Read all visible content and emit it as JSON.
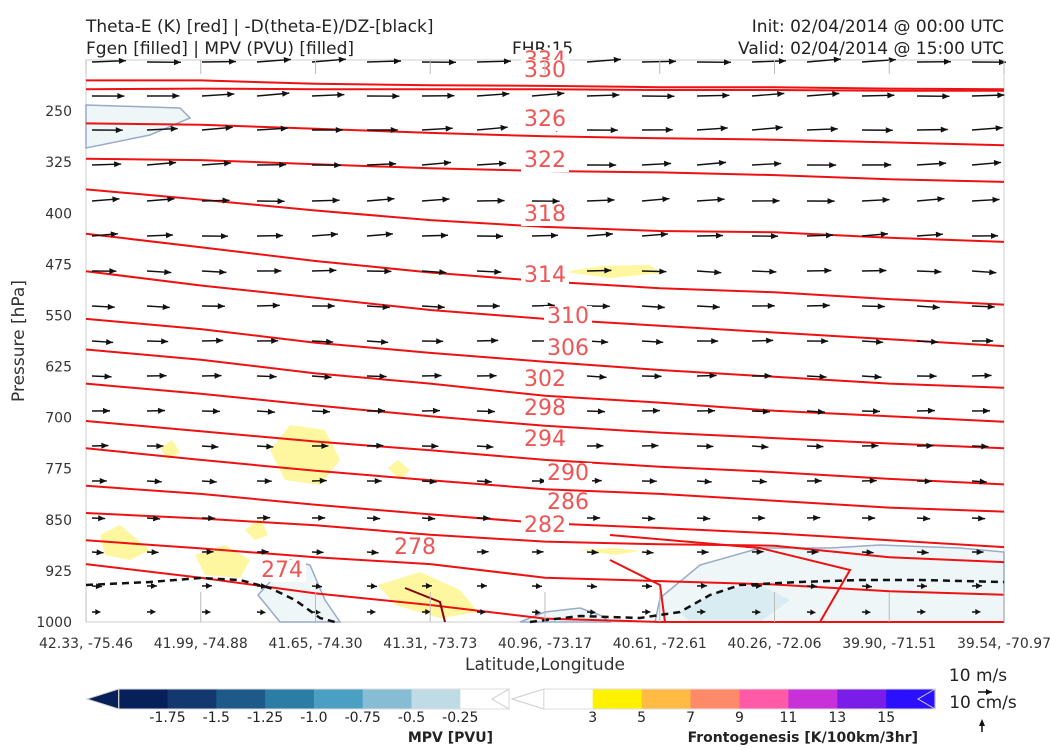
{
  "header": {
    "line1_left": "Theta-E (K) [red] | -D(theta-E)/DZ-[black]",
    "line2_left": "Fgen [filled] | MPV (PVU) [filled]",
    "fhr": "FHR:15",
    "init": "Init: 02/04/2014 @ 00:00 UTC",
    "valid": "Valid: 02/04/2014 @ 15:00 UTC"
  },
  "chart_data": {
    "type": "cross-section",
    "xlabel": "Latitude,Longitude",
    "ylabel": "Pressure [hPa]",
    "ylim": [
      1000,
      175
    ],
    "y_ticks": [
      250,
      325,
      400,
      475,
      550,
      625,
      700,
      775,
      850,
      925,
      1000
    ],
    "x_ticks": [
      "42.33, -75.46",
      "41.99, -74.88",
      "41.65, -74.30",
      "41.31, -73.73",
      "40.96, -73.17",
      "40.61, -72.61",
      "40.26, -72.06",
      "39.90, -71.51",
      "39.54, -70.97"
    ],
    "theta_e_contours": [
      {
        "label": "334",
        "p": [
          205,
          205,
          210,
          212,
          213,
          215,
          215,
          217,
          218
        ]
      },
      {
        "label": "330",
        "p": [
          218,
          217,
          218,
          218,
          218,
          219,
          219,
          220,
          220
        ]
      },
      {
        "label": "326",
        "p": [
          268,
          270,
          276,
          282,
          287,
          290,
          292,
          296,
          300
        ]
      },
      {
        "label": "322",
        "p": [
          320,
          322,
          328,
          334,
          338,
          340,
          344,
          350,
          354
        ]
      },
      {
        "label": "318",
        "p": [
          365,
          380,
          396,
          410,
          420,
          426,
          428,
          436,
          442
        ]
      },
      {
        "label": "314",
        "p": [
          430,
          450,
          470,
          487,
          500,
          510,
          516,
          526,
          534
        ]
      },
      {
        "label": "310",
        "p": [
          485,
          506,
          524,
          542,
          555,
          565,
          575,
          585,
          595
        ]
      },
      {
        "label": "306",
        "p": [
          555,
          570,
          590,
          605,
          618,
          630,
          640,
          650,
          656
        ]
      },
      {
        "label": "302",
        "p": [
          600,
          615,
          635,
          650,
          668,
          678,
          690,
          698,
          706
        ]
      },
      {
        "label": "298",
        "p": [
          650,
          665,
          682,
          698,
          712,
          722,
          730,
          738,
          745
        ]
      },
      {
        "label": "294",
        "p": [
          705,
          720,
          735,
          748,
          762,
          772,
          780,
          790,
          798
        ]
      },
      {
        "label": "290",
        "p": [
          745,
          762,
          778,
          792,
          805,
          812,
          822,
          832,
          838
        ]
      },
      {
        "label": "286",
        "p": [
          800,
          812,
          828,
          842,
          855,
          862,
          870,
          880,
          890
        ]
      },
      {
        "label": "282",
        "p": [
          840,
          848,
          858,
          872,
          882,
          886,
          888,
          905,
          912
        ]
      },
      {
        "label": "278",
        "p": [
          880,
          892,
          905,
          915,
          935,
          940,
          945,
          955,
          960
        ]
      },
      {
        "label": "274",
        "p": [
          915,
          935,
          958,
          975,
          995,
          1000,
          1000,
          1000,
          1000
        ]
      }
    ],
    "wind_arrows": "gridded wind vectors",
    "colorbar_mpv": {
      "label": "MPV [PVU]",
      "ticks": [
        "-1.75",
        "-1.5",
        "-1.25",
        "-1.0",
        "-0.75",
        "-0.5",
        "-0.25"
      ],
      "colors": [
        "#08205a",
        "#12386f",
        "#1d5a8a",
        "#2b7da6",
        "#4b9fc2",
        "#86bcd4",
        "#bfdce6",
        "#ffffff"
      ]
    },
    "colorbar_fgen": {
      "label": "Frontogenesis [K/100km/3hr]",
      "ticks": [
        "3",
        "5",
        "7",
        "9",
        "11",
        "13",
        "15"
      ],
      "colors": [
        "#ffffff",
        "#fff200",
        "#ffbb44",
        "#ff8a6a",
        "#ff5aa8",
        "#c830d8",
        "#7a1de8",
        "#2a10ff"
      ]
    },
    "scale": {
      "horizontal": "10 m/s",
      "vertical": "10 cm/s"
    }
  }
}
